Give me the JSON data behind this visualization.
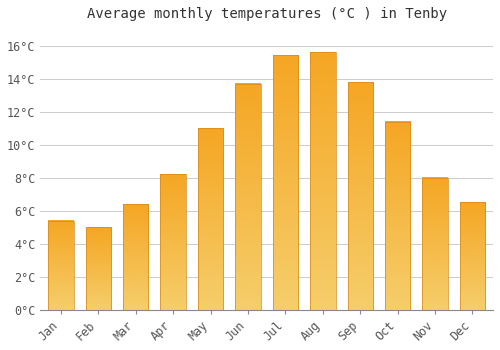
{
  "title": "Average monthly temperatures (°C ) in Tenby",
  "months": [
    "Jan",
    "Feb",
    "Mar",
    "Apr",
    "May",
    "Jun",
    "Jul",
    "Aug",
    "Sep",
    "Oct",
    "Nov",
    "Dec"
  ],
  "values": [
    5.4,
    5.0,
    6.4,
    8.2,
    11.0,
    13.7,
    15.4,
    15.6,
    13.8,
    11.4,
    8.0,
    6.5
  ],
  "bar_color_top": "#F5A623",
  "bar_color_bottom": "#F5CE6B",
  "bar_edge_color": "#D4881A",
  "background_color": "#FFFFFF",
  "grid_color": "#CCCCCC",
  "ylim": [
    0,
    17
  ],
  "yticks": [
    0,
    2,
    4,
    6,
    8,
    10,
    12,
    14,
    16
  ],
  "title_fontsize": 10,
  "tick_fontsize": 8.5
}
